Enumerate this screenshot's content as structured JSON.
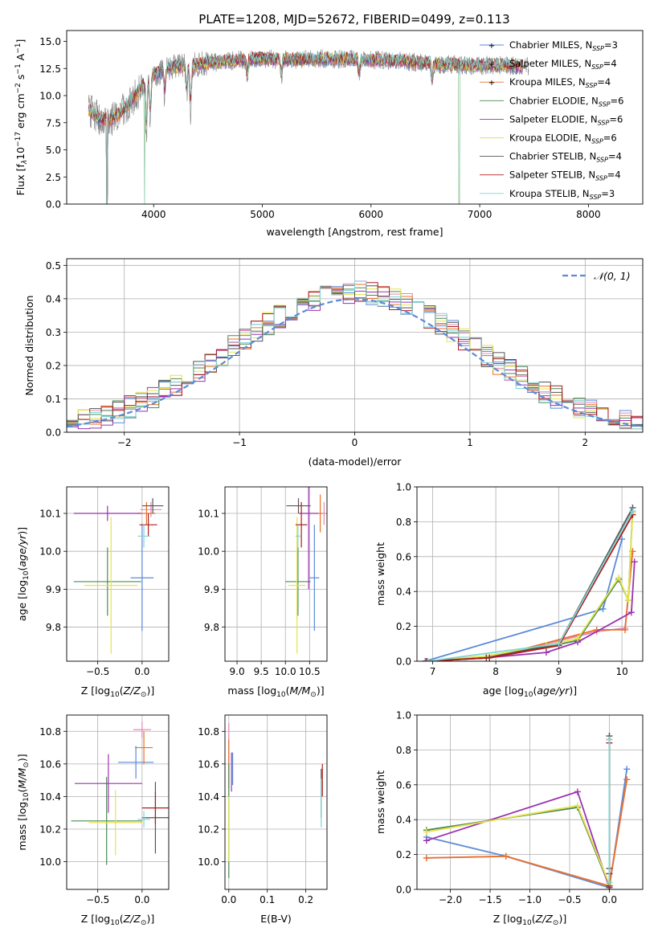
{
  "figure": {
    "title": "PLATE=1208, MJD=52672, FIBERID=0499, z=0.113"
  },
  "colors": {
    "chabrier_miles": "#5b8ad9",
    "salpeter_miles": "#e489b6",
    "kroupa_miles": "#e8722a",
    "chabrier_elodie": "#4a8a54",
    "salpeter_elodie": "#9b33b0",
    "kroupa_elodie": "#e6e34a",
    "chabrier_stelib": "#555555",
    "salpeter_stelib": "#b01c1c",
    "kroupa_stelib": "#7fd6d6",
    "normal": "#5b8ad9",
    "grid": "#b0b0b0"
  },
  "legend_labels": [
    [
      "Chabrier MILES, N",
      "SSP",
      "=3"
    ],
    [
      "Salpeter MILES, N",
      "SSP",
      "=4"
    ],
    [
      "Kroupa MILES, N",
      "SSP",
      "=4"
    ],
    [
      "Chabrier ELODIE, N",
      "SSP",
      "=6"
    ],
    [
      "Salpeter ELODIE, N",
      "SSP",
      "=6"
    ],
    [
      "Kroupa ELODIE, N",
      "SSP",
      "=6"
    ],
    [
      "Chabrier STELIB, N",
      "SSP",
      "=4"
    ],
    [
      "Salpeter STELIB, N",
      "SSP",
      "=4"
    ],
    [
      "Kroupa STELIB, N",
      "SSP",
      "=3"
    ]
  ],
  "chart_data": [
    {
      "id": "spectrum",
      "type": "line",
      "title": "PLATE=1208, MJD=52672, FIBERID=0499, z=0.113",
      "xlabel": "wavelength [Angstrom, rest frame]",
      "ylabel_parts": [
        "Flux [f",
        "λ",
        "10",
        "−17",
        " erg cm",
        "−2",
        " s",
        "−1",
        " A",
        "−1",
        "]"
      ],
      "xlim": [
        3200,
        8500
      ],
      "ylim": [
        0,
        16
      ],
      "xticks": [
        4000,
        5000,
        6000,
        7000,
        8000
      ],
      "yticks": [
        0.0,
        2.5,
        5.0,
        7.5,
        10.0,
        12.5,
        15.0
      ],
      "ytick_labels": [
        "0.0",
        "2.5",
        "5.0",
        "7.5",
        "10.0",
        "12.5",
        "15.0"
      ],
      "legend_position": "upper right",
      "continuum": {
        "x": [
          3400,
          3500,
          3600,
          3700,
          3800,
          3900,
          4000,
          4100,
          4200,
          4300,
          4500,
          4800,
          5000,
          5300,
          5600,
          6000,
          6300,
          6600,
          6900,
          7200,
          7400
        ],
        "y": [
          8.7,
          7.9,
          7.7,
          8.5,
          9.6,
          10.9,
          11.9,
          12.3,
          12.7,
          12.7,
          13.0,
          13.3,
          13.4,
          13.3,
          13.4,
          13.3,
          13.2,
          12.9,
          12.8,
          12.8,
          12.7
        ]
      },
      "absorption_lines": [
        {
          "x": 3934,
          "depth": 5.0
        },
        {
          "x": 3969,
          "depth": 4.5
        },
        {
          "x": 4102,
          "depth": 2.5
        },
        {
          "x": 4304,
          "depth": 3.0
        },
        {
          "x": 4340,
          "depth": 5.0
        },
        {
          "x": 4861,
          "depth": 2.0
        },
        {
          "x": 5175,
          "depth": 2.0
        },
        {
          "x": 5890,
          "depth": 1.8
        },
        {
          "x": 6563,
          "depth": 2.0
        }
      ],
      "model_x_range": [
        3400,
        7400
      ],
      "observed_x_range": [
        3400,
        7450
      ],
      "model_dropouts": [
        {
          "x": 3570,
          "series": "all"
        },
        {
          "x": 3915,
          "series": "kroupa"
        },
        {
          "x": 6810,
          "series": "kroupa"
        },
        {
          "x": 7420,
          "series": "salpeter"
        }
      ]
    },
    {
      "id": "residuals",
      "type": "histogram",
      "xlabel": "(data-model)/error",
      "ylabel": "Normed distribution",
      "xlim": [
        -2.5,
        2.5
      ],
      "ylim": [
        0,
        0.52
      ],
      "xticks": [
        -2,
        -1,
        0,
        1,
        2
      ],
      "xtick_labels": [
        "−2",
        "−1",
        "0",
        "1",
        "2"
      ],
      "yticks": [
        0.0,
        0.1,
        0.2,
        0.3,
        0.4,
        0.5
      ],
      "ytick_labels": [
        "0.0",
        "0.1",
        "0.2",
        "0.3",
        "0.4",
        "0.5"
      ],
      "bin_width": 0.1,
      "bin_range": [
        -2.5,
        2.5
      ],
      "legend_entry": "𝒩(0, 1)",
      "normal": {
        "mu": 0,
        "sigma": 1
      },
      "noise_seed": 7
    },
    {
      "id": "age-vs-z",
      "type": "errorbar",
      "xlabel": "Z [log10(Z/Z⊙)]",
      "ylabel": "age  [log10(age/yr)]",
      "xlim": [
        -0.85,
        0.3
      ],
      "ylim": [
        9.71,
        10.17
      ],
      "xticks": [
        -0.5,
        0.0
      ],
      "xtick_labels": [
        "−0.5",
        "0.0"
      ],
      "yticks": [
        9.8,
        9.9,
        10.0,
        10.1
      ],
      "ytick_labels": [
        "9.8",
        "9.9",
        "10.0",
        "10.1"
      ],
      "points": [
        {
          "s": "chabrier_miles",
          "x": 0.0,
          "xerr": 0.13,
          "y": 9.93,
          "yerr": 0.14
        },
        {
          "s": "salpeter_miles",
          "x": 0.1,
          "xerr": 0.12,
          "y": 10.11,
          "yerr": 0.02
        },
        {
          "s": "kroupa_miles",
          "x": 0.05,
          "xerr": 0.1,
          "y": 10.1,
          "yerr": 0.03
        },
        {
          "s": "chabrier_elodie",
          "x": -0.39,
          "xerr": 0.38,
          "y": 9.92,
          "yerr": 0.09
        },
        {
          "s": "salpeter_elodie",
          "x": -0.39,
          "xerr": 0.38,
          "y": 10.1,
          "yerr": 0.02
        },
        {
          "s": "kroupa_elodie",
          "x": -0.35,
          "xerr": 0.3,
          "y": 9.91,
          "yerr": 0.18
        },
        {
          "s": "chabrier_stelib",
          "x": 0.12,
          "xerr": 0.12,
          "y": 10.12,
          "yerr": 0.02
        },
        {
          "s": "salpeter_stelib",
          "x": 0.07,
          "xerr": 0.1,
          "y": 10.07,
          "yerr": 0.03
        },
        {
          "s": "kroupa_stelib",
          "x": 0.02,
          "xerr": 0.07,
          "y": 10.04,
          "yerr": 0.03
        }
      ]
    },
    {
      "id": "age-vs-mass",
      "type": "errorbar",
      "xlabel": "mass [log10(M/M⊙)]",
      "ylabel": "",
      "xlim": [
        8.75,
        10.86
      ],
      "ylim": [
        9.71,
        10.17
      ],
      "xticks": [
        9.0,
        9.5,
        10.0,
        10.5
      ],
      "xtick_labels": [
        "9.0",
        "9.5",
        "10.0",
        "10.5"
      ],
      "yticks": [
        9.8,
        9.9,
        10.0,
        10.1
      ],
      "ytick_labels": [
        "9.8",
        "9.9",
        "10.0",
        "10.1"
      ],
      "points": [
        {
          "s": "chabrier_miles",
          "x": 10.6,
          "xerr": 0.1,
          "y": 9.93,
          "yerr": 0.14
        },
        {
          "s": "salpeter_miles",
          "x": 10.8,
          "xerr": 0.05,
          "y": 10.1,
          "yerr": 0.03
        },
        {
          "s": "kroupa_miles",
          "x": 10.72,
          "xerr": 0.05,
          "y": 10.1,
          "yerr": 0.05
        },
        {
          "s": "chabrier_elodie",
          "x": 10.26,
          "xerr": 0.26,
          "y": 9.92,
          "yerr": 0.09
        },
        {
          "s": "salpeter_elodie",
          "x": 10.48,
          "xerr": 0.2,
          "y": 10.1,
          "yerr": 0.2
        },
        {
          "s": "kroupa_elodie",
          "x": 10.24,
          "xerr": 0.18,
          "y": 9.91,
          "yerr": 0.18
        },
        {
          "s": "chabrier_stelib",
          "x": 10.27,
          "xerr": 0.25,
          "y": 10.12,
          "yerr": 0.02
        },
        {
          "s": "salpeter_stelib",
          "x": 10.33,
          "xerr": 0.12,
          "y": 10.07,
          "yerr": 0.06
        },
        {
          "s": "kroupa_stelib",
          "x": 10.26,
          "xerr": 0.05,
          "y": 10.04,
          "yerr": 0.03
        }
      ]
    },
    {
      "id": "weight-vs-age",
      "type": "line",
      "xlabel": "age  [log10(age/yr)]",
      "ylabel": "mass weight",
      "xlim": [
        6.75,
        10.33
      ],
      "ylim": [
        0,
        1.0
      ],
      "xticks": [
        7,
        8,
        9,
        10
      ],
      "xtick_labels": [
        "7",
        "8",
        "9",
        "10"
      ],
      "yticks": [
        0.0,
        0.2,
        0.4,
        0.6,
        0.8,
        1.0
      ],
      "ytick_labels": [
        "0.0",
        "0.2",
        "0.4",
        "0.6",
        "0.8",
        "1.0"
      ],
      "series": [
        {
          "s": "chabrier_miles",
          "x": [
            6.88,
            9.7,
            10.0
          ],
          "y": [
            0.0,
            0.3,
            0.7
          ]
        },
        {
          "s": "salpeter_miles",
          "x": [
            6.9,
            7.9,
            9.6,
            10.05,
            10.17
          ],
          "y": [
            0.0,
            0.02,
            0.17,
            0.19,
            0.63
          ]
        },
        {
          "s": "kroupa_miles",
          "x": [
            6.9,
            7.9,
            9.6,
            10.05,
            10.17
          ],
          "y": [
            0.0,
            0.02,
            0.18,
            0.18,
            0.63
          ]
        },
        {
          "s": "chabrier_elodie",
          "x": [
            6.9,
            7.85,
            8.8,
            9.3,
            9.95,
            10.1,
            10.17
          ],
          "y": [
            0.0,
            0.02,
            0.08,
            0.12,
            0.47,
            0.35,
            0.86
          ]
        },
        {
          "s": "salpeter_elodie",
          "x": [
            6.9,
            7.85,
            8.8,
            9.3,
            10.15,
            10.2
          ],
          "y": [
            0.0,
            0.02,
            0.05,
            0.11,
            0.28,
            0.57
          ]
        },
        {
          "s": "kroupa_elodie",
          "x": [
            6.9,
            7.85,
            8.8,
            9.3,
            9.95,
            10.1,
            10.17
          ],
          "y": [
            0.0,
            0.03,
            0.09,
            0.13,
            0.48,
            0.35,
            0.85
          ]
        },
        {
          "s": "chabrier_stelib",
          "x": [
            6.9,
            7.85,
            9.0,
            10.17
          ],
          "y": [
            0.0,
            0.02,
            0.1,
            0.88
          ]
        },
        {
          "s": "salpeter_stelib",
          "x": [
            6.9,
            7.9,
            9.0,
            10.17
          ],
          "y": [
            0.0,
            0.02,
            0.09,
            0.84
          ]
        },
        {
          "s": "kroupa_stelib",
          "x": [
            6.92,
            9.0,
            10.17
          ],
          "y": [
            0.0,
            0.1,
            0.86
          ]
        }
      ]
    },
    {
      "id": "mass-vs-z",
      "type": "errorbar",
      "xlabel": "Z [log10(Z/Z⊙)]",
      "ylabel": "mass [log10(M/M⊙)]",
      "xlim": [
        -0.85,
        0.3
      ],
      "ylim": [
        9.83,
        10.9
      ],
      "xticks": [
        -0.5,
        0.0
      ],
      "xtick_labels": [
        "−0.5",
        "0.0"
      ],
      "yticks": [
        10.0,
        10.2,
        10.4,
        10.6,
        10.8
      ],
      "ytick_labels": [
        "10.0",
        "10.2",
        "10.4",
        "10.6",
        "10.8"
      ],
      "points": [
        {
          "s": "chabrier_miles",
          "x": -0.07,
          "xerr": 0.2,
          "y": 10.61,
          "yerr": 0.1
        },
        {
          "s": "salpeter_miles",
          "x": 0.0,
          "xerr": 0.1,
          "y": 10.81,
          "yerr": 0.05
        },
        {
          "s": "kroupa_miles",
          "x": 0.02,
          "xerr": 0.1,
          "y": 10.7,
          "yerr": 0.1
        },
        {
          "s": "chabrier_elodie",
          "x": -0.4,
          "xerr": 0.4,
          "y": 10.25,
          "yerr": 0.27
        },
        {
          "s": "salpeter_elodie",
          "x": -0.38,
          "xerr": 0.38,
          "y": 10.48,
          "yerr": 0.18
        },
        {
          "s": "kroupa_elodie",
          "x": -0.3,
          "xerr": 0.3,
          "y": 10.24,
          "yerr": 0.2
        },
        {
          "s": "chabrier_stelib",
          "x": 0.15,
          "xerr": 0.15,
          "y": 10.27,
          "yerr": 0.22
        },
        {
          "s": "salpeter_stelib",
          "x": 0.15,
          "xerr": 0.15,
          "y": 10.33,
          "yerr": 0.1
        },
        {
          "s": "kroupa_stelib",
          "x": 0.02,
          "xerr": 0.07,
          "y": 10.26,
          "yerr": 0.05
        }
      ]
    },
    {
      "id": "mass-vs-ebv",
      "type": "errorbar",
      "xlabel": "E(B-V)",
      "ylabel": "",
      "xlim": [
        -0.01,
        0.255
      ],
      "ylim": [
        9.83,
        10.9
      ],
      "xticks": [
        0.0,
        0.1,
        0.2
      ],
      "xtick_labels": [
        "0.0",
        "0.1",
        "0.2"
      ],
      "yticks": [
        10.0,
        10.2,
        10.4,
        10.6,
        10.8
      ],
      "ytick_labels": [
        "10.0",
        "10.2",
        "10.4",
        "10.6",
        "10.8"
      ],
      "points": [
        {
          "s": "chabrier_miles",
          "x": 0.01,
          "xerr": 0.0,
          "y": 10.57,
          "yerr": 0.1
        },
        {
          "s": "salpeter_miles",
          "x": 0.0,
          "xerr": 0.0,
          "y": 10.7,
          "yerr": 0.15
        },
        {
          "s": "kroupa_miles",
          "x": 0.0,
          "xerr": 0.0,
          "y": 10.6,
          "yerr": 0.15
        },
        {
          "s": "chabrier_elodie",
          "x": 0.0,
          "xerr": 0.0,
          "y": 10.25,
          "yerr": 0.35
        },
        {
          "s": "salpeter_elodie",
          "x": 0.007,
          "xerr": 0.0,
          "y": 10.55,
          "yerr": 0.12
        },
        {
          "s": "kroupa_elodie",
          "x": 0.0,
          "xerr": 0.0,
          "y": 10.2,
          "yerr": 0.2
        },
        {
          "s": "chabrier_stelib",
          "x": 0.24,
          "xerr": 0.0,
          "y": 10.42,
          "yerr": 0.15
        },
        {
          "s": "salpeter_stelib",
          "x": 0.243,
          "xerr": 0.0,
          "y": 10.5,
          "yerr": 0.1
        },
        {
          "s": "kroupa_stelib",
          "x": 0.24,
          "xerr": 0.0,
          "y": 10.36,
          "yerr": 0.15
        }
      ]
    },
    {
      "id": "weight-vs-z",
      "type": "line",
      "xlabel": "Z [log10(Z/Z⊙)]",
      "ylabel": "mass weight",
      "xlim": [
        -2.42,
        0.42
      ],
      "ylim": [
        0,
        1.0
      ],
      "xticks": [
        -2.0,
        -1.5,
        -1.0,
        -0.5,
        0.0
      ],
      "xtick_labels": [
        "−2.0",
        "−1.5",
        "−1.0",
        "−0.5",
        "0.0"
      ],
      "yticks": [
        0.0,
        0.2,
        0.4,
        0.6,
        0.8,
        1.0
      ],
      "ytick_labels": [
        "0.0",
        "0.2",
        "0.4",
        "0.6",
        "0.8",
        "1.0"
      ],
      "series": [
        {
          "s": "chabrier_miles",
          "x": [
            -2.3,
            -1.3,
            0.0,
            0.22
          ],
          "y": [
            0.3,
            0.19,
            0.01,
            0.69
          ]
        },
        {
          "s": "salpeter_miles",
          "x": [
            -2.3,
            -1.3,
            0.0,
            0.22
          ],
          "y": [
            0.18,
            0.19,
            0.02,
            0.63
          ]
        },
        {
          "s": "kroupa_miles",
          "x": [
            -2.3,
            -1.3,
            0.0,
            0.22
          ],
          "y": [
            0.18,
            0.19,
            0.02,
            0.63
          ]
        },
        {
          "s": "chabrier_elodie",
          "x": [
            -2.3,
            -0.4,
            0.0,
            0.0
          ],
          "y": [
            0.34,
            0.47,
            0.02,
            0.86
          ]
        },
        {
          "s": "salpeter_elodie",
          "x": [
            -2.3,
            -0.4,
            0.0,
            0.0
          ],
          "y": [
            0.28,
            0.56,
            0.01,
            0.86
          ]
        },
        {
          "s": "kroupa_elodie",
          "x": [
            -2.3,
            -0.4,
            0.0,
            0.0
          ],
          "y": [
            0.33,
            0.48,
            0.03,
            0.86
          ]
        },
        {
          "s": "chabrier_stelib",
          "x": [
            0.0,
            0.0,
            0.0
          ],
          "y": [
            0.01,
            0.12,
            0.88
          ]
        },
        {
          "s": "salpeter_stelib",
          "x": [
            0.0,
            0.0,
            0.0
          ],
          "y": [
            0.02,
            0.09,
            0.84
          ]
        },
        {
          "s": "kroupa_stelib",
          "x": [
            0.0,
            0.0
          ],
          "y": [
            0.04,
            0.86
          ]
        }
      ]
    }
  ]
}
